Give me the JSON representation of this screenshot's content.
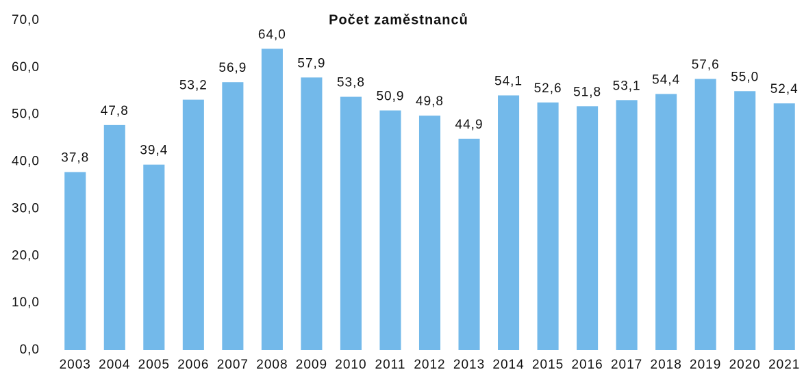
{
  "chart_data": {
    "type": "bar",
    "title": "Počet zaměstnanců",
    "categories": [
      "2003",
      "2004",
      "2005",
      "2006",
      "2007",
      "2008",
      "2009",
      "2010",
      "2011",
      "2012",
      "2013",
      "2014",
      "2015",
      "2016",
      "2017",
      "2018",
      "2019",
      "2020",
      "2021"
    ],
    "values": [
      37.8,
      47.8,
      39.4,
      53.2,
      56.9,
      64.0,
      57.9,
      53.8,
      50.9,
      49.8,
      44.9,
      54.1,
      52.6,
      51.8,
      53.1,
      54.4,
      57.6,
      55.0,
      52.4
    ],
    "value_labels": [
      "37,8",
      "47,8",
      "39,4",
      "53,2",
      "56,9",
      "64,0",
      "57,9",
      "53,8",
      "50,9",
      "49,8",
      "44,9",
      "54,1",
      "52,6",
      "51,8",
      "53,1",
      "54,4",
      "57,6",
      "55,0",
      "52,4"
    ],
    "color": "#73b9ea",
    "ylim": [
      0,
      70
    ],
    "yticks": [
      {
        "value": 0,
        "label": "0,0"
      },
      {
        "value": 10,
        "label": "10,0"
      },
      {
        "value": 20,
        "label": "20,0"
      },
      {
        "value": 30,
        "label": "30,0"
      },
      {
        "value": 40,
        "label": "40,0"
      },
      {
        "value": 50,
        "label": "50,0"
      },
      {
        "value": 60,
        "label": "60,0"
      },
      {
        "value": 70,
        "label": "70,0"
      }
    ],
    "grid": false
  }
}
